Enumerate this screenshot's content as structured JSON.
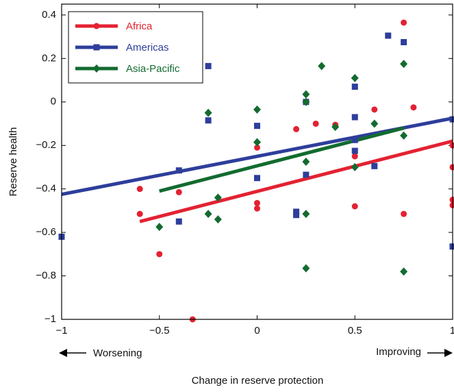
{
  "chart_data": {
    "type": "scatter",
    "x_label": "Change in reserve protection",
    "y_label": "Reserve health",
    "left_note": "Worsening",
    "right_note": "Improving",
    "xlim": [
      -1,
      1
    ],
    "ylim": [
      -1,
      0.45
    ],
    "xticks": [
      {
        "value": -1,
        "label": "−1"
      },
      {
        "value": -0.5,
        "label": "−0.5"
      },
      0,
      0.5,
      1
    ],
    "yticks": [
      {
        "value": -1,
        "label": "−1"
      },
      {
        "value": -0.8,
        "label": "−0.8"
      },
      {
        "value": -0.6,
        "label": "−0.6"
      },
      {
        "value": -0.4,
        "label": "−0.4"
      },
      {
        "value": -0.2,
        "label": "−0.2"
      },
      0,
      0.2,
      0.4
    ],
    "legend": "upper left",
    "series": [
      {
        "name": "Africa",
        "color": "#e32232",
        "marker": "circle",
        "x": [
          -0.6,
          -0.6,
          -0.5,
          -0.4,
          -0.33,
          0,
          0,
          0,
          0.2,
          0.3,
          0.4,
          0.5,
          0.5,
          0.6,
          0.75,
          0.75,
          0.8,
          1,
          1,
          1,
          1
        ],
        "y": [
          -0.4,
          -0.515,
          -0.7,
          -0.415,
          -1.0,
          -0.21,
          -0.465,
          -0.49,
          -0.125,
          -0.1,
          -0.105,
          -0.25,
          -0.48,
          -0.035,
          -0.515,
          0.365,
          -0.025,
          -0.2,
          -0.3,
          -0.45,
          -0.475
        ],
        "trend": {
          "x": [
            -0.6,
            1
          ],
          "y": [
            -0.55,
            -0.18
          ]
        }
      },
      {
        "name": "Americas",
        "color": "#2e3e9b",
        "marker": "square",
        "x": [
          -1,
          -0.4,
          -0.4,
          -0.25,
          -0.25,
          0,
          0,
          0.2,
          0.2,
          0.25,
          0.25,
          0.5,
          0.5,
          0.5,
          0.5,
          0.6,
          0.67,
          0.75,
          1,
          1
        ],
        "y": [
          -0.62,
          -0.315,
          -0.55,
          0.165,
          -0.085,
          -0.11,
          -0.35,
          -0.505,
          -0.52,
          0,
          -0.335,
          0.07,
          -0.07,
          -0.175,
          -0.225,
          -0.295,
          0.305,
          0.275,
          -0.08,
          -0.665
        ],
        "trend": {
          "x": [
            -1,
            1
          ],
          "y": [
            -0.425,
            -0.075
          ]
        }
      },
      {
        "name": "Asia-Pacific",
        "color": "#136b30",
        "marker": "diamond",
        "x": [
          -0.5,
          -0.25,
          -0.25,
          -0.2,
          -0.2,
          0,
          0,
          0.25,
          0.25,
          0.25,
          0.25,
          0.25,
          0.33,
          0.4,
          0.5,
          0.5,
          0.6,
          0.75,
          0.75,
          0.75
        ],
        "y": [
          -0.575,
          -0.05,
          -0.515,
          -0.44,
          -0.54,
          -0.035,
          -0.185,
          0.035,
          0,
          -0.275,
          -0.515,
          -0.765,
          0.165,
          -0.115,
          0.11,
          -0.3,
          -0.1,
          0.175,
          -0.155,
          -0.78
        ],
        "trend": {
          "x": [
            -0.5,
            0.75
          ],
          "y": [
            -0.41,
            -0.12
          ]
        }
      }
    ]
  }
}
